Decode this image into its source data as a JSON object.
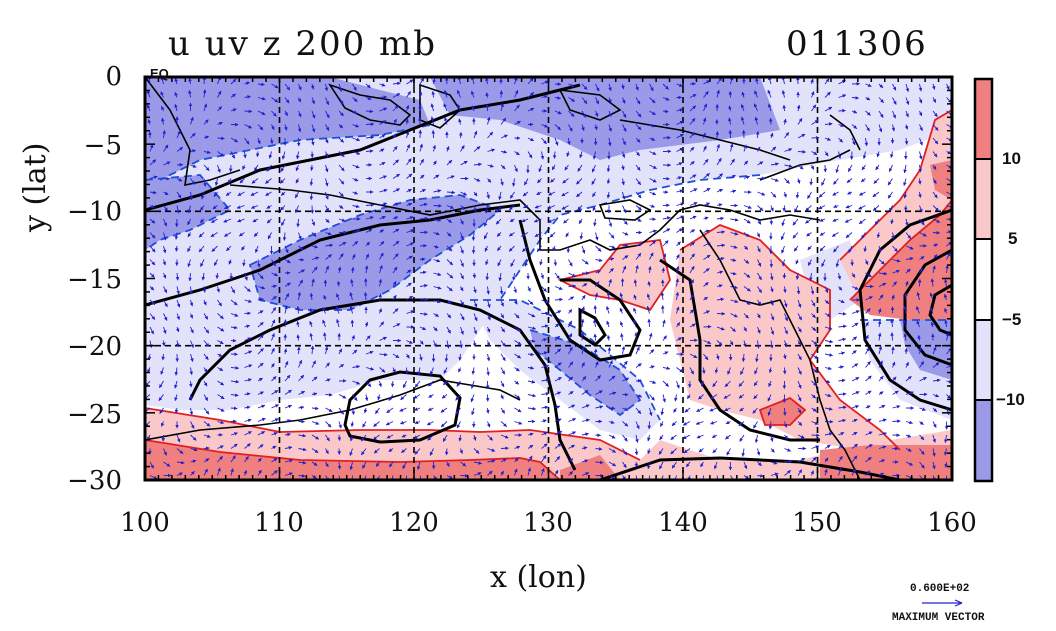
{
  "title": {
    "left": "u uv z 200 mb",
    "right": "011306"
  },
  "axes": {
    "xlabel": "x (lon)",
    "ylabel": "y (lat)",
    "x_ticks": [
      "100",
      "110",
      "120",
      "130",
      "140",
      "150",
      "160"
    ],
    "y_ticks": [
      "0",
      "−5",
      "−10",
      "−15",
      "−20",
      "−25",
      "−30"
    ],
    "corner_label": "EQ"
  },
  "colorbar": {
    "ticks": [
      "10",
      "5",
      "−5",
      "−10"
    ],
    "colors": [
      "#f08080",
      "#fac8c8",
      "#ffffff",
      "#e2e2fa",
      "#9a9ae8"
    ]
  },
  "vector_legend": {
    "value": "0.600E+02",
    "label": "MAXIMUM VECTOR"
  },
  "colors": {
    "positive_contour": "#e02020",
    "negative_contour": "#1f4fd6",
    "height_contour": "#000000",
    "arrow": "#2020d0"
  },
  "chart_data": {
    "type": "heatmap",
    "title": "u uv z 200 mb",
    "subtitle": "011306",
    "xlabel": "x (lon)",
    "ylabel": "y (lat)",
    "xlim": [
      100,
      160
    ],
    "ylim": [
      -30,
      0
    ],
    "levels": [
      -10,
      -5,
      5,
      10
    ],
    "grid": true
  }
}
